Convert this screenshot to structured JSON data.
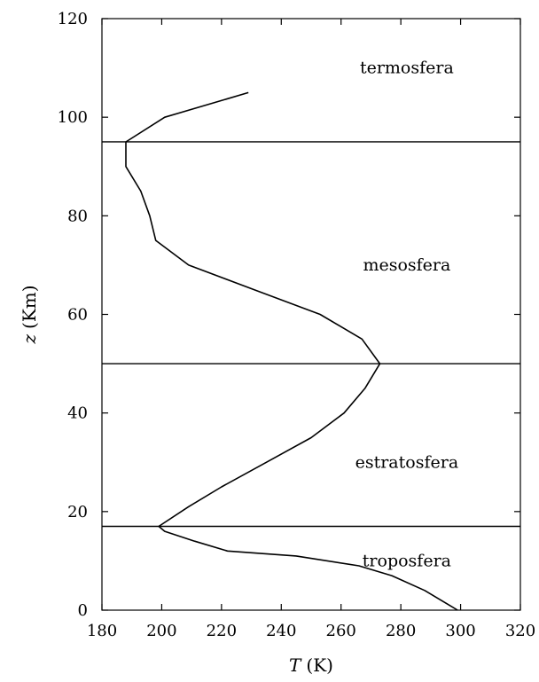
{
  "chart_data": {
    "type": "line",
    "xlabel_var": "T",
    "xlabel_unit": "(K)",
    "ylabel_var": "z",
    "ylabel_unit": "(Km)",
    "xlim": [
      180,
      320
    ],
    "ylim": [
      0,
      120
    ],
    "xticks": [
      180,
      200,
      220,
      240,
      260,
      280,
      300,
      320
    ],
    "yticks": [
      0,
      20,
      40,
      60,
      80,
      100,
      120
    ],
    "grid": false,
    "series": [
      {
        "points": [
          {
            "x": 299,
            "y": 0
          },
          {
            "x": 288,
            "y": 4
          },
          {
            "x": 277,
            "y": 7
          },
          {
            "x": 266,
            "y": 9
          },
          {
            "x": 245,
            "y": 11
          },
          {
            "x": 222,
            "y": 12
          },
          {
            "x": 211,
            "y": 14
          },
          {
            "x": 201,
            "y": 16
          },
          {
            "x": 199,
            "y": 17
          },
          {
            "x": 209,
            "y": 21
          },
          {
            "x": 220,
            "y": 25
          },
          {
            "x": 235,
            "y": 30
          },
          {
            "x": 250,
            "y": 35
          },
          {
            "x": 261,
            "y": 40
          },
          {
            "x": 268,
            "y": 45
          },
          {
            "x": 273,
            "y": 50
          },
          {
            "x": 267,
            "y": 55
          },
          {
            "x": 253,
            "y": 60
          },
          {
            "x": 231,
            "y": 65
          },
          {
            "x": 209,
            "y": 70
          },
          {
            "x": 198,
            "y": 75
          },
          {
            "x": 196,
            "y": 80
          },
          {
            "x": 193,
            "y": 85
          },
          {
            "x": 188,
            "y": 90
          },
          {
            "x": 188,
            "y": 95
          },
          {
            "x": 201,
            "y": 100
          },
          {
            "x": 229,
            "y": 105
          }
        ]
      }
    ],
    "boundaries": [
      17,
      50,
      95
    ],
    "regions": [
      {
        "label": "termosfera",
        "x": 282,
        "y": 110
      },
      {
        "label": "mesosfera",
        "x": 282,
        "y": 70
      },
      {
        "label": "estratosfera",
        "x": 282,
        "y": 30
      },
      {
        "label": "troposfera",
        "x": 282,
        "y": 10
      }
    ]
  }
}
